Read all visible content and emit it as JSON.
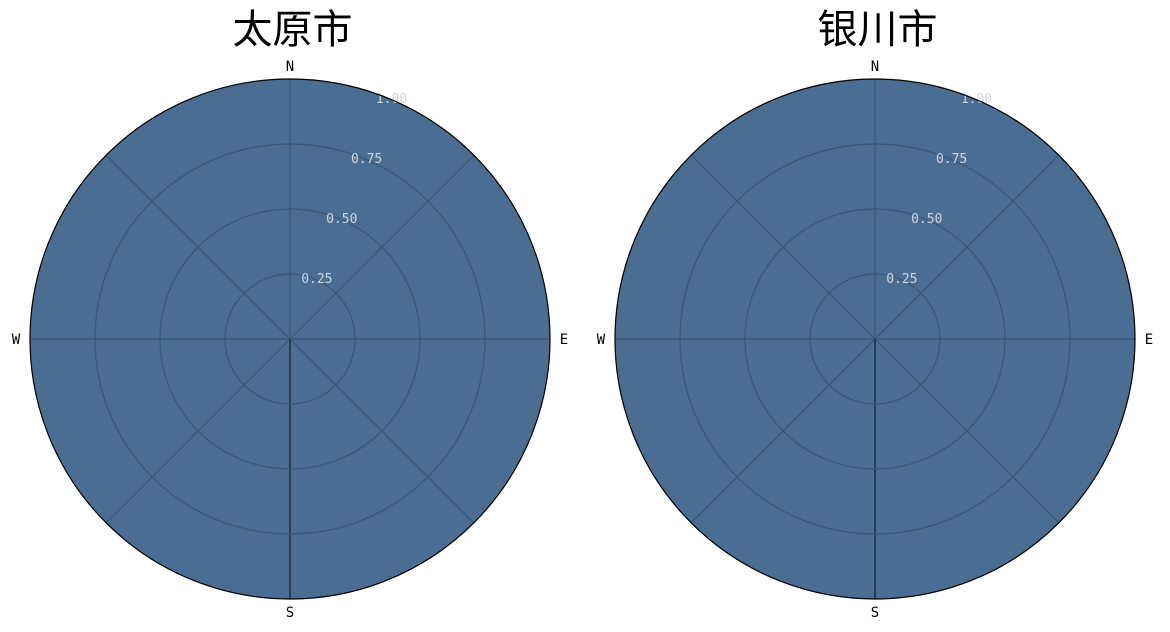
{
  "chart_data": [
    {
      "type": "polar",
      "title": "太原市",
      "fill_color": "#4a6d91",
      "grid_color": "#3a5775",
      "radial_ticks": [
        "0.25",
        "0.50",
        "0.75",
        "1.00"
      ],
      "radial_values": [
        0.25,
        0.5,
        0.75,
        1.0
      ],
      "rlim": [
        0,
        1.0
      ],
      "directions": [
        "N",
        "E",
        "S",
        "W"
      ],
      "sectors": 8,
      "grid": true
    },
    {
      "type": "polar",
      "title": "银川市",
      "fill_color": "#4a6d91",
      "grid_color": "#3a5775",
      "radial_ticks": [
        "0.25",
        "0.50",
        "0.75",
        "1.00"
      ],
      "radial_values": [
        0.25,
        0.5,
        0.75,
        1.0
      ],
      "rlim": [
        0,
        1.0
      ],
      "directions": [
        "N",
        "E",
        "S",
        "W"
      ],
      "sectors": 8,
      "grid": true
    }
  ]
}
